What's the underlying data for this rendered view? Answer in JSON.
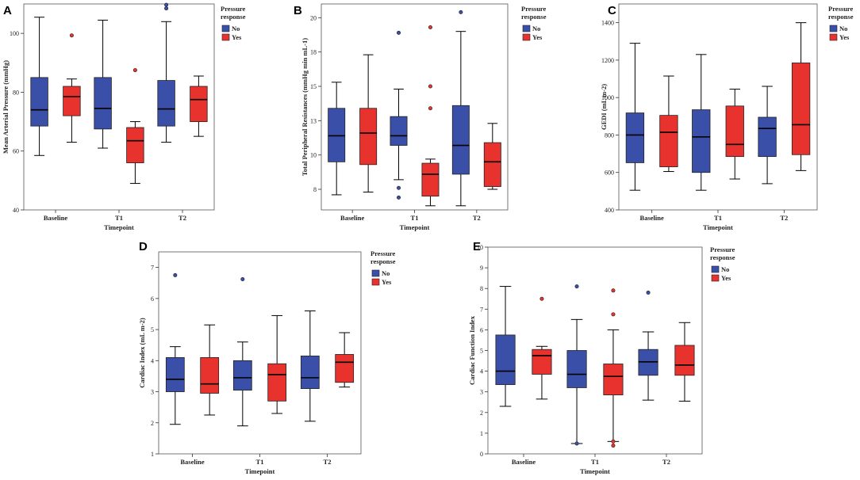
{
  "colors": {
    "no": "#3a4fa8",
    "yes": "#e8322d",
    "median": "#000000"
  },
  "chart_data": [
    {
      "panel": "A",
      "type": "boxplot",
      "xlabel": "Timepoint",
      "ylabel": "Mean Arterial Pressure (mmHg)",
      "ylim": [
        40,
        110
      ],
      "yticks": [
        "40",
        "60",
        "80",
        "100"
      ],
      "categories": [
        "Baseline",
        "T1",
        "T2"
      ],
      "legend": {
        "title": [
          "Pressure",
          "response"
        ],
        "entries": [
          "No",
          "Yes"
        ]
      },
      "series": [
        {
          "name": "No",
          "boxes": [
            {
              "whislo": 58.5,
              "q1": 68.5,
              "med": 74,
              "q3": 85,
              "whishi": 105.5,
              "fliers": []
            },
            {
              "whislo": 61,
              "q1": 67.5,
              "med": 74.5,
              "q3": 85,
              "whishi": 104.5,
              "fliers": []
            },
            {
              "whislo": 63,
              "q1": 68.5,
              "med": 74.3,
              "q3": 84,
              "whishi": 104,
              "fliers": [
                108.5,
                109.7
              ]
            }
          ]
        },
        {
          "name": "Yes",
          "boxes": [
            {
              "whislo": 63,
              "q1": 72,
              "med": 78.5,
              "q3": 82,
              "whishi": 84.5,
              "fliers": [
                99.3
              ]
            },
            {
              "whislo": 49,
              "q1": 56,
              "med": 63.5,
              "q3": 68,
              "whishi": 70,
              "fliers": [
                87.5
              ]
            },
            {
              "whislo": 65,
              "q1": 70,
              "med": 77.5,
              "q3": 82,
              "whishi": 85.5,
              "fliers": []
            }
          ]
        }
      ]
    },
    {
      "panel": "B",
      "type": "boxplot",
      "xlabel": "Timepoint",
      "ylabel": "Total Peripheral Resistances (mmHg min mL-1)",
      "ylim": [
        6.5,
        21.5
      ],
      "yticks": [
        "8",
        "10",
        "13",
        "15",
        "18",
        "20"
      ],
      "yticks_at": [
        8,
        10.5,
        13,
        15.5,
        18,
        20.5
      ],
      "categories": [
        "Baseline",
        "T1",
        "T2"
      ],
      "legend": {
        "title": [
          "Pressure",
          "response"
        ],
        "entries": [
          "No",
          "Yes"
        ]
      },
      "series": [
        {
          "name": "No",
          "boxes": [
            {
              "whislo": 7.6,
              "q1": 10,
              "med": 11.9,
              "q3": 13.9,
              "whishi": 15.8,
              "fliers": []
            },
            {
              "whislo": 8.7,
              "q1": 11.2,
              "med": 11.9,
              "q3": 13.3,
              "whishi": 15.3,
              "fliers": [
                7.4,
                8.1,
                19.4
              ]
            },
            {
              "whislo": 6.8,
              "q1": 9.1,
              "med": 11.2,
              "q3": 14.1,
              "whishi": 19.5,
              "fliers": [
                20.9
              ]
            }
          ]
        },
        {
          "name": "Yes",
          "boxes": [
            {
              "whislo": 7.8,
              "q1": 9.8,
              "med": 12.1,
              "q3": 13.9,
              "whishi": 17.8,
              "fliers": []
            },
            {
              "whislo": 6.8,
              "q1": 7.5,
              "med": 9.1,
              "q3": 9.9,
              "whishi": 10.2,
              "fliers": [
                13.9,
                15.5,
                19.8
              ]
            },
            {
              "whislo": 8,
              "q1": 8.2,
              "med": 10,
              "q3": 11.4,
              "whishi": 12.8,
              "fliers": []
            }
          ]
        }
      ]
    },
    {
      "panel": "C",
      "type": "boxplot",
      "xlabel": "Timepoint",
      "ylabel": "GEDI (mL m-2)",
      "ylim": [
        400,
        1500
      ],
      "yticks": [
        "400",
        "600",
        "800",
        "1000",
        "1200",
        "1400"
      ],
      "categories": [
        "Baseline",
        "T1",
        "T2"
      ],
      "legend": {
        "title": [
          "Pressure",
          "response"
        ],
        "entries": [
          "No",
          "Yes"
        ]
      },
      "series": [
        {
          "name": "No",
          "boxes": [
            {
              "whislo": 505,
              "q1": 652,
              "med": 800,
              "q3": 918,
              "whishi": 1290,
              "fliers": []
            },
            {
              "whislo": 505,
              "q1": 600,
              "med": 790,
              "q3": 935,
              "whishi": 1230,
              "fliers": []
            },
            {
              "whislo": 540,
              "q1": 685,
              "med": 835,
              "q3": 895,
              "whishi": 1060,
              "fliers": []
            }
          ]
        },
        {
          "name": "Yes",
          "boxes": [
            {
              "whislo": 605,
              "q1": 630,
              "med": 815,
              "q3": 905,
              "whishi": 1115,
              "fliers": []
            },
            {
              "whislo": 565,
              "q1": 685,
              "med": 750,
              "q3": 955,
              "whishi": 1045,
              "fliers": []
            },
            {
              "whislo": 610,
              "q1": 695,
              "med": 855,
              "q3": 1185,
              "whishi": 1400,
              "fliers": []
            }
          ]
        }
      ]
    },
    {
      "panel": "D",
      "type": "boxplot",
      "xlabel": "Timepoint",
      "ylabel": "Cardiac Index (mL m-2)",
      "ylim": [
        1,
        7.5
      ],
      "yticks": [
        "1",
        "2",
        "3",
        "4",
        "5",
        "6",
        "7"
      ],
      "categories": [
        "Baseline",
        "T1",
        "T2"
      ],
      "legend": {
        "title": [
          "Pressure",
          "response"
        ],
        "entries": [
          "No",
          "Yes"
        ]
      },
      "series": [
        {
          "name": "No",
          "boxes": [
            {
              "whislo": 1.95,
              "q1": 3,
              "med": 3.4,
              "q3": 4.1,
              "whishi": 4.45,
              "fliers": [
                6.75
              ]
            },
            {
              "whislo": 1.9,
              "q1": 3.05,
              "med": 3.45,
              "q3": 4,
              "whishi": 4.6,
              "fliers": [
                6.62
              ]
            },
            {
              "whislo": 2.05,
              "q1": 3.1,
              "med": 3.45,
              "q3": 4.15,
              "whishi": 5.6,
              "fliers": []
            }
          ]
        },
        {
          "name": "Yes",
          "boxes": [
            {
              "whislo": 2.25,
              "q1": 2.95,
              "med": 3.25,
              "q3": 4.1,
              "whishi": 5.15,
              "fliers": []
            },
            {
              "whislo": 2.3,
              "q1": 2.7,
              "med": 3.55,
              "q3": 3.9,
              "whishi": 5.45,
              "fliers": []
            },
            {
              "whislo": 3.15,
              "q1": 3.3,
              "med": 3.95,
              "q3": 4.2,
              "whishi": 4.9,
              "fliers": []
            }
          ]
        }
      ]
    },
    {
      "panel": "E",
      "type": "boxplot",
      "xlabel": "Timepoint",
      "ylabel": "Cardiac Function Index",
      "ylim": [
        0,
        10
      ],
      "yticks": [
        "0",
        "1",
        "2",
        "3",
        "4",
        "5",
        "6",
        "7",
        "8",
        "9",
        "10"
      ],
      "categories": [
        "Baseline",
        "T1",
        "T2"
      ],
      "legend": {
        "title": [
          "Pressure",
          "response"
        ],
        "entries": [
          "No",
          "Yes"
        ]
      },
      "series": [
        {
          "name": "No",
          "boxes": [
            {
              "whislo": 2.3,
              "q1": 3.35,
              "med": 4,
              "q3": 5.75,
              "whishi": 8.1,
              "fliers": []
            },
            {
              "whislo": 0.5,
              "q1": 3.2,
              "med": 3.85,
              "q3": 5,
              "whishi": 6.5,
              "fliers": [
                0.5,
                8.1
              ]
            },
            {
              "whislo": 2.6,
              "q1": 3.8,
              "med": 4.45,
              "q3": 5.05,
              "whishi": 5.9,
              "fliers": [
                7.8
              ]
            }
          ]
        },
        {
          "name": "Yes",
          "boxes": [
            {
              "whislo": 2.65,
              "q1": 3.85,
              "med": 4.75,
              "q3": 5.05,
              "whishi": 5.2,
              "fliers": [
                7.5
              ]
            },
            {
              "whislo": 0.6,
              "q1": 2.85,
              "med": 3.75,
              "q3": 4.35,
              "whishi": 6,
              "fliers": [
                0.4,
                0.6,
                6.75,
                7.9
              ]
            },
            {
              "whislo": 2.55,
              "q1": 3.8,
              "med": 4.3,
              "q3": 5.25,
              "whishi": 6.35,
              "fliers": []
            }
          ]
        }
      ]
    }
  ]
}
